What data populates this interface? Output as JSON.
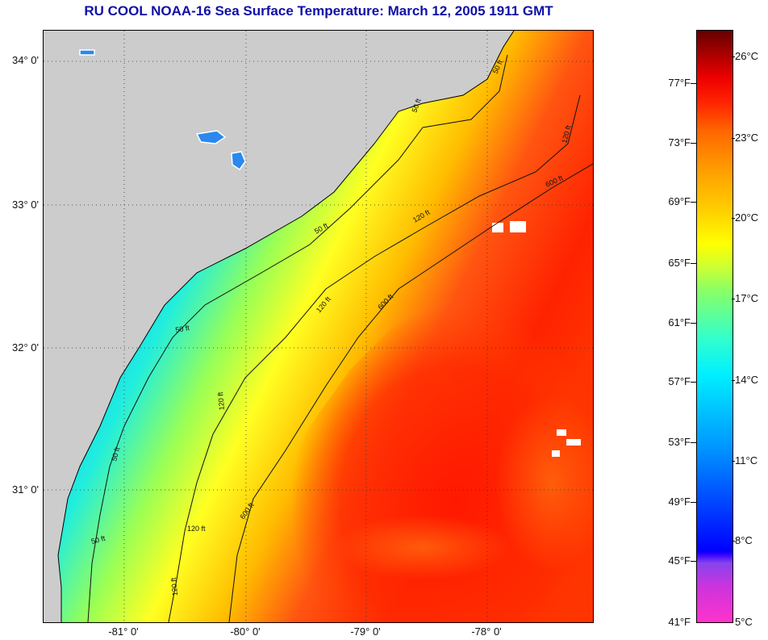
{
  "title": "RU COOL  NOAA-16  Sea Surface Temperature:  March 12, 2005 1911 GMT",
  "map": {
    "latitude_labels": [
      "34° 0'",
      "33° 0'",
      "32° 0'",
      "31° 0'"
    ],
    "longitude_labels": [
      "-81° 0'",
      "-80° 0'",
      "-79° 0'",
      "-78° 0'"
    ],
    "grid": "dotted",
    "land_color": "#cccccc",
    "contour_labels": {
      "c50_a": "50 ft",
      "c50_b": "50 ft",
      "c50_c": "50 ft",
      "c50_d": "50 ft",
      "c50_e": "50 ft",
      "c50_f": "50 ft",
      "c120_a": "120 ft",
      "c120_b": "120 ft",
      "c120_c": "120 ft",
      "c120_d": "120 ft",
      "c120_e": "120 ft",
      "c120_f": "120 ft",
      "c600_a": "600 ft",
      "c600_b": "600 ft",
      "c600_c": "600 ft"
    }
  },
  "colorbar": {
    "fahrenheit_labels": [
      "77°F",
      "73°F",
      "69°F",
      "65°F",
      "61°F",
      "57°F",
      "53°F",
      "49°F",
      "45°F",
      "41°F"
    ],
    "celsius_labels": [
      "26°C",
      "23°C",
      "20°C",
      "17°C",
      "14°C",
      "11°C",
      "8°C",
      "5°C"
    ],
    "colors": [
      "#ff33cc",
      "#0000ff",
      "#00ccff",
      "#ffff00",
      "#ff2200",
      "#660000"
    ]
  }
}
